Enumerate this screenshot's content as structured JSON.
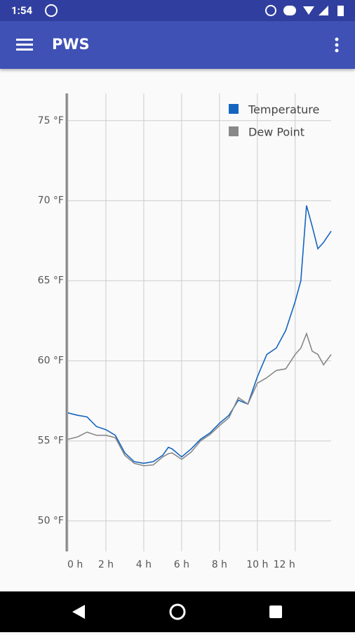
{
  "status_bar": {
    "time": "1:54"
  },
  "app_bar": {
    "title": "PWS"
  },
  "chart_data": {
    "type": "line",
    "x": [
      0,
      0.5,
      1,
      1.5,
      2,
      2.5,
      3,
      3.5,
      4,
      4.5,
      5,
      5.3,
      5.5,
      6,
      6.5,
      7,
      7.5,
      8,
      8.5,
      9,
      9.5,
      10,
      10.5,
      11,
      11.5,
      12,
      12.3,
      12.6,
      12.9,
      13.2,
      13.5,
      13.9
    ],
    "series": [
      {
        "name": "Temperature",
        "color": "#1565c0",
        "values": [
          56.75,
          56.6,
          56.5,
          55.9,
          55.7,
          55.35,
          54.25,
          53.7,
          53.6,
          53.7,
          54.1,
          54.6,
          54.5,
          54.0,
          54.5,
          55.1,
          55.5,
          56.1,
          56.6,
          57.55,
          57.3,
          59.0,
          60.4,
          60.8,
          61.9,
          63.7,
          65.0,
          69.7,
          68.4,
          67.0,
          67.4,
          68.1
        ]
      },
      {
        "name": "Dew Point",
        "color": "#888888",
        "values": [
          55.1,
          55.25,
          55.55,
          55.35,
          55.35,
          55.2,
          54.1,
          53.6,
          53.45,
          53.5,
          54.0,
          54.2,
          54.25,
          53.85,
          54.3,
          55.0,
          55.4,
          55.95,
          56.45,
          57.7,
          57.3,
          58.6,
          58.95,
          59.4,
          59.5,
          60.4,
          60.8,
          61.7,
          60.6,
          60.4,
          59.75,
          60.4
        ]
      }
    ],
    "xlim": [
      0,
      13.9
    ],
    "xticks": [
      {
        "value": 0,
        "label": "0 h"
      },
      {
        "value": 2,
        "label": "2 h"
      },
      {
        "value": 4,
        "label": "4 h"
      },
      {
        "value": 6,
        "label": "6 h"
      },
      {
        "value": 8,
        "label": "8 h"
      },
      {
        "value": 10,
        "label": "10 h"
      },
      {
        "value": 12,
        "label": "12 h"
      }
    ],
    "ylim": [
      48.1,
      76.7
    ],
    "yticks": [
      {
        "value": 50,
        "label": "50 °F"
      },
      {
        "value": 55,
        "label": "55 °F"
      },
      {
        "value": 60,
        "label": "60 °F"
      },
      {
        "value": 65,
        "label": "65 °F"
      },
      {
        "value": 70,
        "label": "70 °F"
      },
      {
        "value": 75,
        "label": "75 °F"
      }
    ],
    "grid": true,
    "legend": "top-right"
  }
}
